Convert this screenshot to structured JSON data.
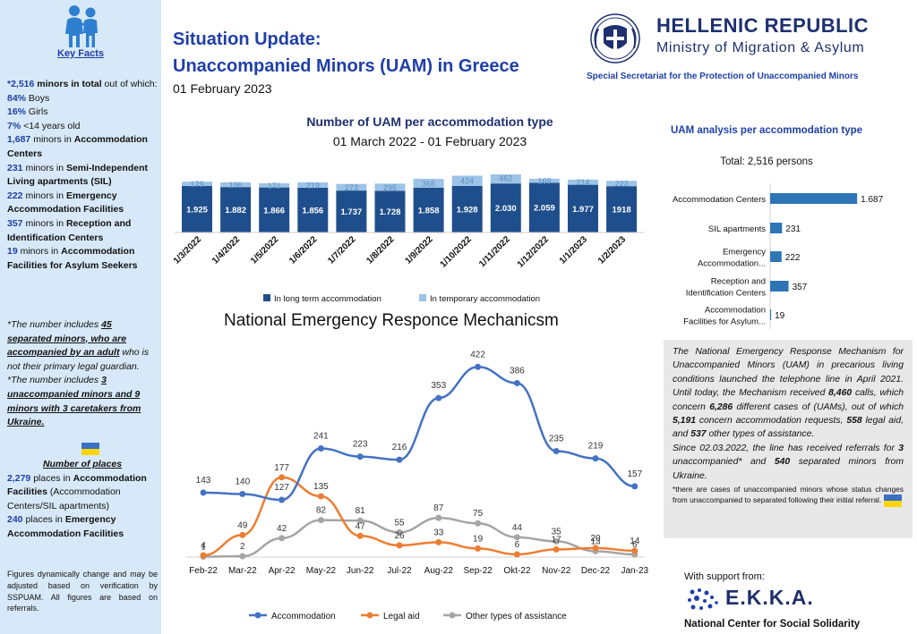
{
  "sidebar": {
    "title": "Key Facts",
    "stats": [
      {
        "value": "*2,516",
        "text": " minors in total",
        "rest": " out of which:"
      },
      {
        "value": "84%",
        "text": " Boys"
      },
      {
        "value": "16%",
        "text": " Girls"
      },
      {
        "value": "7%",
        "text": " <14 years old"
      },
      {
        "value": "1,687",
        "text": " minors in ",
        "bold": "Accommodation Centers"
      },
      {
        "value": "231",
        "text": " minors in ",
        "bold": "Semi-Independent Living apartments (SIL)"
      },
      {
        "value": "222",
        "text": " minors in ",
        "bold": "Emergency Accommodation Facilities"
      },
      {
        "value": "357",
        "text": " minors in ",
        "bold": "Reception and Identification Centers"
      },
      {
        "value": "19",
        "text": " minors in ",
        "bold": "Accommodation Facilities for Asylum Seekers"
      }
    ],
    "note1_pre": "*The number includes ",
    "note1_link": "45 separated minors, who are accompanied by an adult",
    "note1_post": " who is not their primary legal guardian.",
    "note2_pre": "*The number includes ",
    "note2_link": "3 unaccompanied minors and 9 minors with 3 caretakers from Ukraine.",
    "places_title": "Number of places",
    "places_1_value": "2,279",
    "places_1_text": " places in ",
    "places_1_bold": "Accommodation Facilities",
    "places_1_rest": " (Accommodation Centers/SIL apartments)",
    "places_2_value": "240",
    "places_2_text": " places in ",
    "places_2_bold": "Emergency Accommodation Facilities",
    "footnote": "Figures dynamically change and may be adjusted based on verification by SSPUAM. All figures are based on referrals."
  },
  "header": {
    "title_line1": "Situation Update:",
    "title_line2": "Unaccompanied Minors (UAM) in Greece",
    "date": "01 February 2023",
    "org_title": "HELLENIC REPUBLIC",
    "org_sub": "Ministry of Migration & Asylum",
    "secretariat": "Special Secretariat for the Protection of Unaccompanied Minors"
  },
  "bar_chart": {
    "title": "Number of UAM per accommodation type",
    "subtitle": "01 March 2022 - 01 February 2023"
  },
  "hbar_chart": {
    "title": "UAM analysis per accommodation type",
    "subtitle": "Total: 2,516 persons"
  },
  "line_chart": {
    "title": "National Emergency Responce Mechanicsm"
  },
  "mechanism": {
    "p1_a": "The National Emergency Response Mechanism for Unaccompanied Minors (UAM) in precarious living conditions launched the telephone line in April 2021. Until today, the Mechanism received ",
    "calls": "8,460",
    "p1_b": " calls, which concern ",
    "cases": "6,286",
    "p1_c": " different cases of (UAMs), out of which ",
    "accom": "5,191",
    "p1_d": " concern accommodation requests, ",
    "legal": "558",
    "p1_e": " legal aid, and ",
    "other": "537",
    "p1_f": " other types of assistance.",
    "p2_a": "Since 02.03.2022, the line has received referrals for ",
    "unacc": "3",
    "p2_b": " unaccompanied* and ",
    "sep": "540",
    "p2_c": " separated minors from Ukraine.",
    "footnote": "*there are cases of unaccompanied minors whose status changes from unaccompanied to separated following their initial referral."
  },
  "support": {
    "label": "With support from:",
    "logo_text": "E.K.K.A.",
    "full_name": "National Center for Social Solidarity"
  },
  "colors": {
    "dark_blue": "#1f4e8c",
    "light_blue": "#9dc3e6",
    "hbar": "#2e75b6",
    "line_accommodation": "#4472c4",
    "line_legal": "#ed7d31",
    "line_other": "#a5a5a5",
    "title_blue": "#1f3fa8"
  },
  "chart_data": [
    {
      "type": "bar",
      "title": "Number of UAM per accommodation type",
      "subtitle": "01 March 2022 - 01 February 2023",
      "stacked": true,
      "categories": [
        "1/3/2022",
        "1/4/2022",
        "1/5/2022",
        "1/6/2022",
        "1/7/2022",
        "1/8/2022",
        "1/9/2022",
        "1/10/2022",
        "1/11/2022",
        "1/12/2022",
        "1/1/2023",
        "1/2/2023"
      ],
      "series": [
        {
          "name": "In long term accommodation",
          "values": [
            1925,
            1882,
            1866,
            1856,
            1737,
            1728,
            1858,
            1928,
            2030,
            2059,
            1977,
            1918
          ],
          "labels": [
            "1.925",
            "1.882",
            "1.866",
            "1.856",
            "1.737",
            "1.728",
            "1.858",
            "1.928",
            "2.030",
            "2.059",
            "1.977",
            "1918"
          ]
        },
        {
          "name": "In temporary accommodation",
          "values": [
            179,
            196,
            171,
            219,
            273,
            295,
            366,
            424,
            462,
            169,
            214,
            222
          ],
          "labels": [
            "179",
            "196",
            "171",
            "219",
            "273",
            "295",
            "366",
            "424",
            "462",
            "169",
            "214",
            "222"
          ]
        }
      ],
      "legend": "bottom"
    },
    {
      "type": "bar",
      "orientation": "horizontal",
      "title": "UAM analysis per accommodation type",
      "subtitle": "Total: 2,516 persons",
      "categories": [
        "Accommodation Centers",
        "SIL apartments",
        "Emergency Accommodation...",
        "Reception and Identification Centers",
        "Accommodation Facilities for Asylum..."
      ],
      "values": [
        1687,
        231,
        222,
        357,
        19
      ],
      "labels": [
        "1.687",
        "231",
        "222",
        "357",
        "19"
      ]
    },
    {
      "type": "line",
      "title": "National Emergency Responce Mechanicsm",
      "categories": [
        "Feb-22",
        "Mar-22",
        "Apr-22",
        "May-22",
        "Jun-22",
        "Jul-22",
        "Aug-22",
        "Sep-22",
        "Okt-22",
        "Nov-22",
        "Dec-22",
        "Jan-23"
      ],
      "series": [
        {
          "name": "Accommodation",
          "values": [
            143,
            140,
            127,
            241,
            223,
            216,
            353,
            422,
            386,
            235,
            219,
            157
          ]
        },
        {
          "name": "Legal aid",
          "values": [
            4,
            49,
            177,
            135,
            47,
            26,
            33,
            19,
            6,
            17,
            20,
            14
          ]
        },
        {
          "name": "Other types of assistance",
          "values": [
            1,
            2,
            42,
            82,
            81,
            55,
            87,
            75,
            44,
            35,
            13,
            6
          ]
        }
      ],
      "ylim": [
        0,
        450
      ],
      "legend": "bottom"
    }
  ]
}
